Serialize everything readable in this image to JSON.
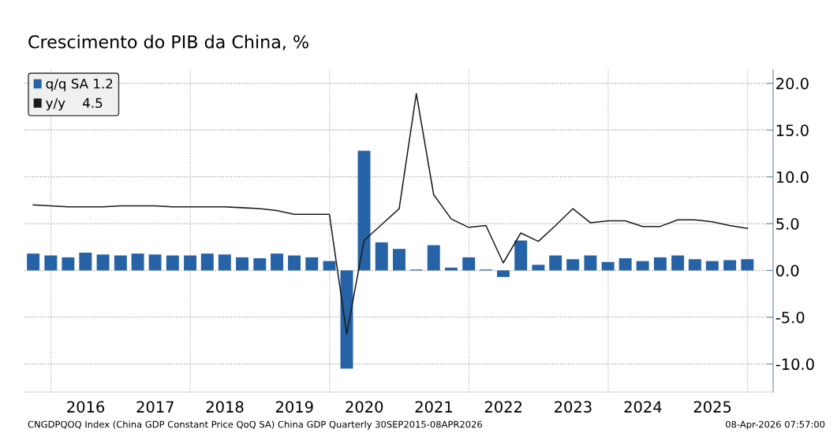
{
  "chart_data": {
    "type": "bar",
    "title": "Crescimento do PIB da China, %",
    "x": [
      "2015-09-30",
      "2015-12-31",
      "2016-03-31",
      "2016-06-30",
      "2016-09-30",
      "2016-12-31",
      "2017-03-31",
      "2017-06-30",
      "2017-09-30",
      "2017-12-31",
      "2018-03-31",
      "2018-06-30",
      "2018-09-30",
      "2018-12-31",
      "2019-03-31",
      "2019-06-30",
      "2019-09-30",
      "2019-12-31",
      "2020-03-31",
      "2020-06-30",
      "2020-09-30",
      "2020-12-31",
      "2021-03-31",
      "2021-06-30",
      "2021-09-30",
      "2021-12-31",
      "2022-03-31",
      "2022-06-30",
      "2022-09-30",
      "2022-12-31",
      "2023-03-31",
      "2023-06-30",
      "2023-09-30",
      "2023-12-31",
      "2024-03-31",
      "2024-06-30",
      "2024-09-30",
      "2024-12-31",
      "2025-03-31",
      "2025-06-30",
      "2025-09-30",
      "2025-12-31"
    ],
    "series": [
      {
        "name": "q/q SA 1.2",
        "color": "#2563a6",
        "values": [
          1.8,
          1.6,
          1.4,
          1.9,
          1.7,
          1.6,
          1.8,
          1.7,
          1.6,
          1.6,
          1.8,
          1.7,
          1.4,
          1.3,
          1.8,
          1.6,
          1.4,
          1.0,
          -10.5,
          12.8,
          3.0,
          2.3,
          0.1,
          2.7,
          0.3,
          1.4,
          0.1,
          -0.7,
          3.2,
          0.6,
          1.6,
          1.2,
          1.6,
          0.9,
          1.3,
          1.0,
          1.4,
          1.6,
          1.2,
          1.0,
          1.1,
          1.2
        ]
      },
      {
        "name": "y/y    4.5",
        "type": "line",
        "color": "#1a1a1a",
        "values": [
          7.0,
          6.9,
          6.8,
          6.8,
          6.8,
          6.9,
          6.9,
          6.9,
          6.8,
          6.8,
          6.8,
          6.8,
          6.7,
          6.6,
          6.4,
          6.0,
          6.0,
          6.0,
          -6.8,
          3.2,
          4.9,
          6.6,
          18.9,
          8.1,
          5.5,
          4.6,
          4.8,
          0.8,
          4.0,
          3.1,
          4.8,
          6.6,
          5.1,
          5.3,
          5.3,
          4.7,
          4.7,
          5.4,
          5.4,
          5.2,
          4.8,
          4.5
        ]
      }
    ],
    "xlim": [
      "2015-08-15",
      "2026-05-15"
    ],
    "xticks": [
      {
        "value": "2016-07-01",
        "label": "2016"
      },
      {
        "value": "2017-07-01",
        "label": "2017"
      },
      {
        "value": "2018-07-01",
        "label": "2018"
      },
      {
        "value": "2019-07-01",
        "label": "2019"
      },
      {
        "value": "2020-07-01",
        "label": "2020"
      },
      {
        "value": "2021-07-01",
        "label": "2021"
      },
      {
        "value": "2022-07-01",
        "label": "2022"
      },
      {
        "value": "2023-07-01",
        "label": "2023"
      },
      {
        "value": "2024-07-01",
        "label": "2024"
      },
      {
        "value": "2025-07-01",
        "label": "2025"
      }
    ],
    "ylim": [
      -13,
      21.5
    ],
    "yticks": [
      {
        "value": -10,
        "label": "-10.0"
      },
      {
        "value": -5,
        "label": "-5.0"
      },
      {
        "value": 0,
        "label": "0.0"
      },
      {
        "value": 5,
        "label": "5.0"
      },
      {
        "value": 10,
        "label": "10.0"
      },
      {
        "value": 15,
        "label": "15.0"
      },
      {
        "value": 20,
        "label": "20.0"
      }
    ],
    "ref_lines": [
      {
        "axis": "x",
        "value": "2016-01-01",
        "color": "#b0b0b0",
        "line_style": "dotted"
      },
      {
        "axis": "x",
        "value": "2018-01-01",
        "color": "#b0b0b0",
        "line_style": "dotted"
      },
      {
        "axis": "x",
        "value": "2020-01-01",
        "color": "#b0b0b0",
        "line_style": "dotted"
      },
      {
        "axis": "x",
        "value": "2022-01-01",
        "color": "#b0b0b0",
        "line_style": "dotted"
      },
      {
        "axis": "x",
        "value": "2024-01-01",
        "color": "#b0b0b0",
        "line_style": "dotted"
      },
      {
        "axis": "x",
        "value": "2026-01-01",
        "color": "#b0b0b0",
        "line_style": "dotted"
      }
    ],
    "grid": "y",
    "legend": "top left",
    "annotations": [
      "CNGDPQOQ Index (China GDP Constant Price QoQ SA) China GDP Quarterly 30SEP2015-08APR2026",
      "08-Apr-2026 07:57:00"
    ]
  }
}
